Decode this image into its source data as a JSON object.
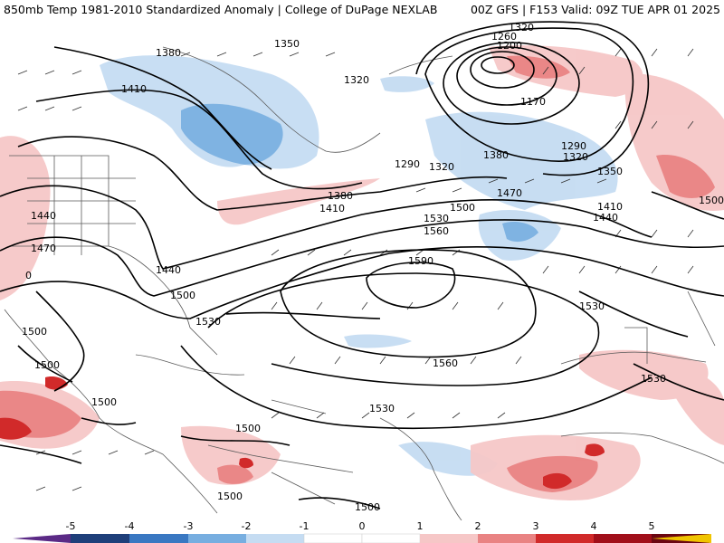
{
  "header": {
    "title_left": "850mb Temp 1981-2010 Standardized Anomaly | College of DuPage NEXLAB",
    "title_right": "00Z GFS | F153 Valid: 09Z TUE APR 01 2025"
  },
  "map": {
    "contour_labels": [
      {
        "id": "c1380a",
        "text": "1380"
      },
      {
        "id": "c1350a",
        "text": "1350"
      },
      {
        "id": "c1320a",
        "text": "1320"
      },
      {
        "id": "c1320b",
        "text": "1320"
      },
      {
        "id": "c1260",
        "text": "1260"
      },
      {
        "id": "c1200",
        "text": "1200"
      },
      {
        "id": "c1170",
        "text": "1170"
      },
      {
        "id": "c1410a",
        "text": "1410"
      },
      {
        "id": "c1290a",
        "text": "1290"
      },
      {
        "id": "c1320c",
        "text": "1320"
      },
      {
        "id": "c1290b",
        "text": "1290"
      },
      {
        "id": "c1320d",
        "text": "1320"
      },
      {
        "id": "c1380b",
        "text": "1380"
      },
      {
        "id": "c1350b",
        "text": "1350"
      },
      {
        "id": "c1470a",
        "text": "1470"
      },
      {
        "id": "c1410b",
        "text": "1410"
      },
      {
        "id": "c1380c",
        "text": "1380"
      },
      {
        "id": "c1410c",
        "text": "1410"
      },
      {
        "id": "c1440a",
        "text": "1440"
      },
      {
        "id": "c1500a",
        "text": "1500"
      },
      {
        "id": "c1530a",
        "text": "1530"
      },
      {
        "id": "c1560a",
        "text": "1560"
      },
      {
        "id": "c1440b",
        "text": "1440"
      },
      {
        "id": "c1470b",
        "text": "1470"
      },
      {
        "id": "c1440c",
        "text": "1440"
      },
      {
        "id": "c1500b",
        "text": "1500"
      },
      {
        "id": "c1590",
        "text": "1590"
      },
      {
        "id": "c1530b",
        "text": "1530"
      },
      {
        "id": "c1530c",
        "text": "1530"
      },
      {
        "id": "c1560b",
        "text": "1560"
      },
      {
        "id": "c1500c",
        "text": "1500"
      },
      {
        "id": "c1500d",
        "text": "1500"
      },
      {
        "id": "c1500e",
        "text": "1500"
      },
      {
        "id": "c1530d",
        "text": "1530"
      },
      {
        "id": "c1530e",
        "text": "1530"
      },
      {
        "id": "c1500f",
        "text": "1500"
      },
      {
        "id": "c1500g",
        "text": "1500"
      },
      {
        "id": "c1500h",
        "text": "1500"
      },
      {
        "id": "c1500i",
        "text": "1500"
      },
      {
        "id": "c0",
        "text": "0"
      }
    ]
  },
  "colorbar": {
    "ticks": [
      "-5",
      "-4",
      "-3",
      "-2",
      "-1",
      "0",
      "1",
      "2",
      "3",
      "4",
      "5"
    ],
    "colors": {
      "neg5": "#5b2a86",
      "neg4": "#1f3f7a",
      "neg3": "#3a78c2",
      "neg2": "#77aee0",
      "neg1": "#c5dcf2",
      "zero": "#ffffff",
      "pos1": "#f6c7c7",
      "pos2": "#e98383",
      "pos3": "#d12a2a",
      "pos4": "#a10f1a",
      "pos5": "#6b0612",
      "high": "#f0c400"
    }
  }
}
